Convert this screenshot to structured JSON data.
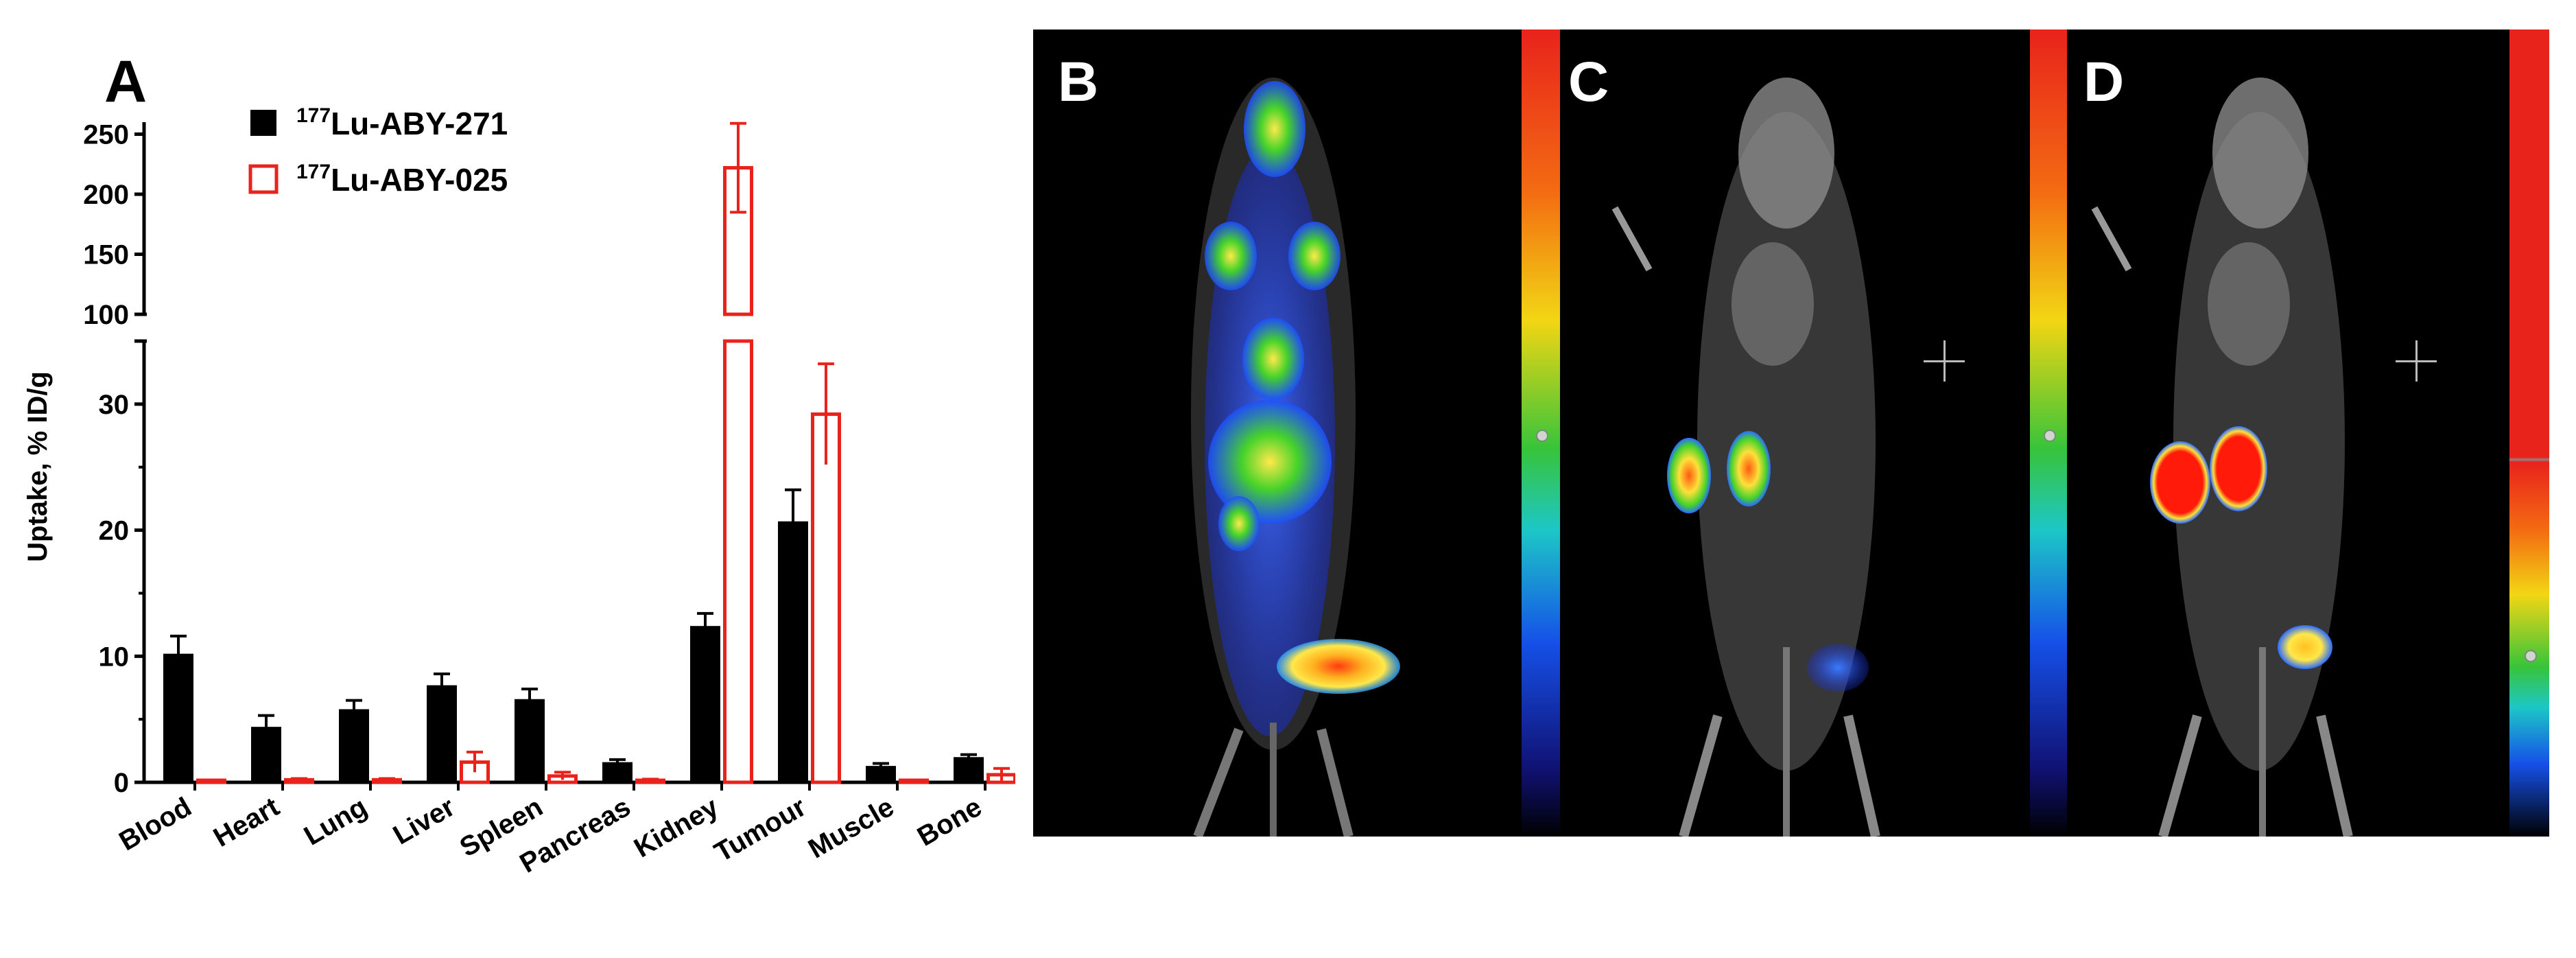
{
  "chart_data": {
    "type": "bar",
    "panel_label": "A",
    "ylabel": "Uptake, % ID/g",
    "categories": [
      "Blood",
      "Heart",
      "Lung",
      "Liver",
      "Spleen",
      "Pancreas",
      "Kidney",
      "Tumour",
      "Muscle",
      "Bone"
    ],
    "series": [
      {
        "name_prefix": "177",
        "name_suffix": "Lu-ABY-271",
        "color": "#000000",
        "fill": "solid",
        "values": [
          10.2,
          4.4,
          5.8,
          7.7,
          6.6,
          1.6,
          12.4,
          20.7,
          1.3,
          2.0
        ],
        "errors": [
          1.4,
          0.9,
          0.7,
          0.9,
          0.8,
          0.2,
          1.0,
          2.5,
          0.2,
          0.2
        ]
      },
      {
        "name_prefix": "177",
        "name_suffix": "Lu-ABY-025",
        "color": "#e8231c",
        "fill": "open",
        "values": [
          0.05,
          0.2,
          0.2,
          1.6,
          0.5,
          0.15,
          222,
          29.2,
          0.1,
          0.6
        ],
        "errors": [
          0.05,
          0.1,
          0.1,
          0.8,
          0.3,
          0.1,
          37,
          4.0,
          0.05,
          0.5
        ]
      }
    ],
    "y_axis_broken": true,
    "y_lower_ylim": [
      0,
      35
    ],
    "y_lower_ticks": [
      0,
      10,
      20,
      30
    ],
    "y_upper_ylim": [
      100,
      260
    ],
    "y_upper_ticks": [
      100,
      150,
      200,
      250
    ],
    "legend_position": "top-left"
  },
  "panels": [
    {
      "letter": "B"
    },
    {
      "letter": "C"
    },
    {
      "letter": "D"
    }
  ]
}
